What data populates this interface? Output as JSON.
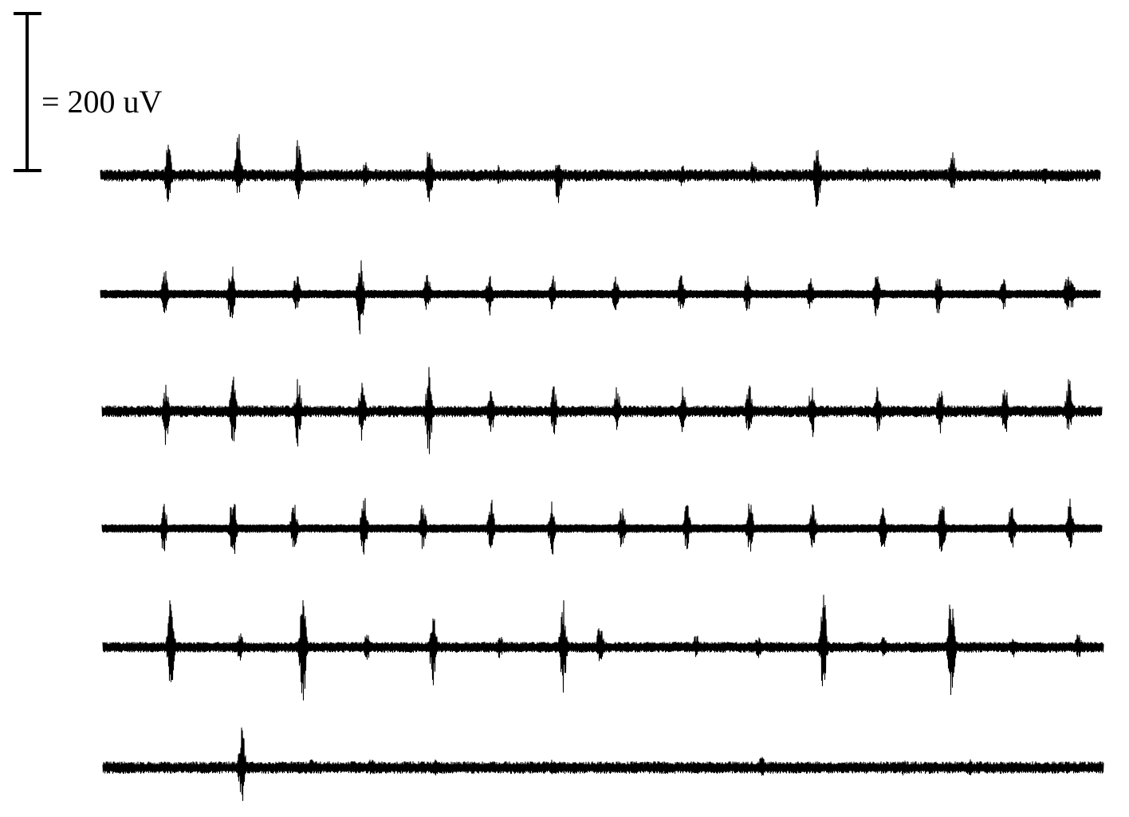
{
  "scale_bar": {
    "label": "= 200 uV",
    "value_uV": 200
  },
  "chart_data": {
    "type": "line",
    "title": "",
    "xlabel": "",
    "ylabel": "",
    "grid": false,
    "legend": "none",
    "trace_color": "#000000",
    "series": [
      {
        "noise": 0.3,
        "bursts": [
          {
            "t": 0.068,
            "up": 1.2,
            "down": 1.05
          },
          {
            "t": 0.137,
            "up": 0.45,
            "down": 0.35
          },
          {
            "t": 0.138,
            "up": 1.55,
            "down": 0.95
          },
          {
            "t": 0.198,
            "up": 1.3,
            "down": 0.8
          },
          {
            "t": 0.265,
            "up": 0.55,
            "down": 0.5
          },
          {
            "t": 0.329,
            "up": 1.3,
            "down": 1.2
          },
          {
            "t": 0.398,
            "up": 0.35,
            "down": 0.35
          },
          {
            "t": 0.458,
            "up": 0.75,
            "down": 1.15
          },
          {
            "t": 0.582,
            "up": 0.35,
            "down": 0.45
          },
          {
            "t": 0.653,
            "up": 0.55,
            "down": 0.3
          },
          {
            "t": 0.717,
            "up": 1.3,
            "down": 1.4
          },
          {
            "t": 0.768,
            "up": 0.35,
            "down": 0.3
          },
          {
            "t": 0.852,
            "up": 0.85,
            "down": 0.55
          },
          {
            "t": 0.945,
            "up": 0.3,
            "down": 0.3
          }
        ]
      },
      {
        "noise": 0.12,
        "bursts": [
          {
            "t": 0.064,
            "up": 0.95,
            "down": 0.85
          },
          {
            "t": 0.131,
            "up": 1.1,
            "down": 1.25
          },
          {
            "t": 0.196,
            "up": 0.8,
            "down": 0.6
          },
          {
            "t": 0.26,
            "up": 1.2,
            "down": 1.6
          },
          {
            "t": 0.327,
            "up": 0.75,
            "down": 0.6
          },
          {
            "t": 0.389,
            "up": 0.7,
            "down": 0.8
          },
          {
            "t": 0.452,
            "up": 0.75,
            "down": 0.6
          },
          {
            "t": 0.515,
            "up": 0.6,
            "down": 0.6
          },
          {
            "t": 0.581,
            "up": 0.7,
            "down": 0.75
          },
          {
            "t": 0.647,
            "up": 0.75,
            "down": 0.65
          },
          {
            "t": 0.71,
            "up": 0.7,
            "down": 0.6
          },
          {
            "t": 0.776,
            "up": 0.8,
            "down": 0.75
          },
          {
            "t": 0.838,
            "up": 0.7,
            "down": 0.7
          },
          {
            "t": 0.903,
            "up": 0.75,
            "down": 0.65
          },
          {
            "t": 0.967,
            "up": 0.65,
            "down": 0.55
          },
          {
            "t": 0.972,
            "up": 0.6,
            "down": 0.5
          }
        ]
      },
      {
        "noise": 0.28,
        "bursts": [
          {
            "t": 0.064,
            "up": 0.95,
            "down": 1.2
          },
          {
            "t": 0.131,
            "up": 1.35,
            "down": 1.1
          },
          {
            "t": 0.196,
            "up": 1.2,
            "down": 1.3
          },
          {
            "t": 0.26,
            "up": 1.15,
            "down": 1.0
          },
          {
            "t": 0.327,
            "up": 1.6,
            "down": 1.5
          },
          {
            "t": 0.389,
            "up": 0.85,
            "down": 0.9
          },
          {
            "t": 0.452,
            "up": 0.95,
            "down": 0.8
          },
          {
            "t": 0.515,
            "up": 0.9,
            "down": 0.7
          },
          {
            "t": 0.581,
            "up": 0.85,
            "down": 0.75
          },
          {
            "t": 0.647,
            "up": 0.95,
            "down": 0.9
          },
          {
            "t": 0.71,
            "up": 1.0,
            "down": 1.05
          },
          {
            "t": 0.776,
            "up": 0.9,
            "down": 0.8
          },
          {
            "t": 0.838,
            "up": 1.0,
            "down": 0.85
          },
          {
            "t": 0.903,
            "up": 0.95,
            "down": 0.9
          },
          {
            "t": 0.967,
            "up": 1.25,
            "down": 0.75
          }
        ]
      },
      {
        "noise": 0.12,
        "bursts": [
          {
            "t": 0.062,
            "up": 0.95,
            "down": 0.9
          },
          {
            "t": 0.131,
            "up": 1.3,
            "down": 1.2
          },
          {
            "t": 0.192,
            "up": 0.95,
            "down": 0.75
          },
          {
            "t": 0.262,
            "up": 1.15,
            "down": 1.1
          },
          {
            "t": 0.321,
            "up": 0.95,
            "down": 0.75
          },
          {
            "t": 0.389,
            "up": 1.1,
            "down": 0.8
          },
          {
            "t": 0.45,
            "up": 0.95,
            "down": 0.95
          },
          {
            "t": 0.52,
            "up": 0.75,
            "down": 0.8
          },
          {
            "t": 0.585,
            "up": 0.85,
            "down": 0.75
          },
          {
            "t": 0.648,
            "up": 1.0,
            "down": 0.85
          },
          {
            "t": 0.711,
            "up": 0.95,
            "down": 0.75
          },
          {
            "t": 0.781,
            "up": 0.75,
            "down": 0.8
          },
          {
            "t": 0.84,
            "up": 1.1,
            "down": 1.1
          },
          {
            "t": 0.91,
            "up": 1.05,
            "down": 0.75
          },
          {
            "t": 0.968,
            "up": 1.0,
            "down": 0.75
          }
        ]
      },
      {
        "noise": 0.22,
        "bursts": [
          {
            "t": 0.068,
            "up": 1.8,
            "down": 1.6
          },
          {
            "t": 0.137,
            "up": 0.55,
            "down": 0.5
          },
          {
            "t": 0.2,
            "up": 1.8,
            "down": 2.1
          },
          {
            "t": 0.264,
            "up": 0.5,
            "down": 0.45
          },
          {
            "t": 0.33,
            "up": 1.4,
            "down": 1.3
          },
          {
            "t": 0.397,
            "up": 0.45,
            "down": 0.4
          },
          {
            "t": 0.46,
            "up": 1.75,
            "down": 1.55
          },
          {
            "t": 0.497,
            "up": 0.9,
            "down": 0.55
          },
          {
            "t": 0.593,
            "up": 0.45,
            "down": 0.4
          },
          {
            "t": 0.655,
            "up": 0.45,
            "down": 0.4
          },
          {
            "t": 0.72,
            "up": 2.1,
            "down": 1.55
          },
          {
            "t": 0.78,
            "up": 0.4,
            "down": 0.4
          },
          {
            "t": 0.848,
            "up": 2.2,
            "down": 1.85
          },
          {
            "t": 0.91,
            "up": 0.35,
            "down": 0.35
          },
          {
            "t": 0.975,
            "up": 0.5,
            "down": 0.45
          }
        ]
      },
      {
        "noise": 0.3,
        "bursts": [
          {
            "t": 0.139,
            "up": 1.45,
            "down": 1.2
          },
          {
            "t": 0.208,
            "up": 0.35,
            "down": 0.3
          },
          {
            "t": 0.268,
            "up": 0.35,
            "down": 0.3
          },
          {
            "t": 0.333,
            "up": 0.3,
            "down": 0.3
          },
          {
            "t": 0.45,
            "up": 0.3,
            "down": 0.3
          },
          {
            "t": 0.659,
            "up": 0.5,
            "down": 0.4
          },
          {
            "t": 0.8,
            "up": 0.3,
            "down": 0.3
          },
          {
            "t": 0.866,
            "up": 0.3,
            "down": 0.3
          }
        ]
      }
    ]
  }
}
